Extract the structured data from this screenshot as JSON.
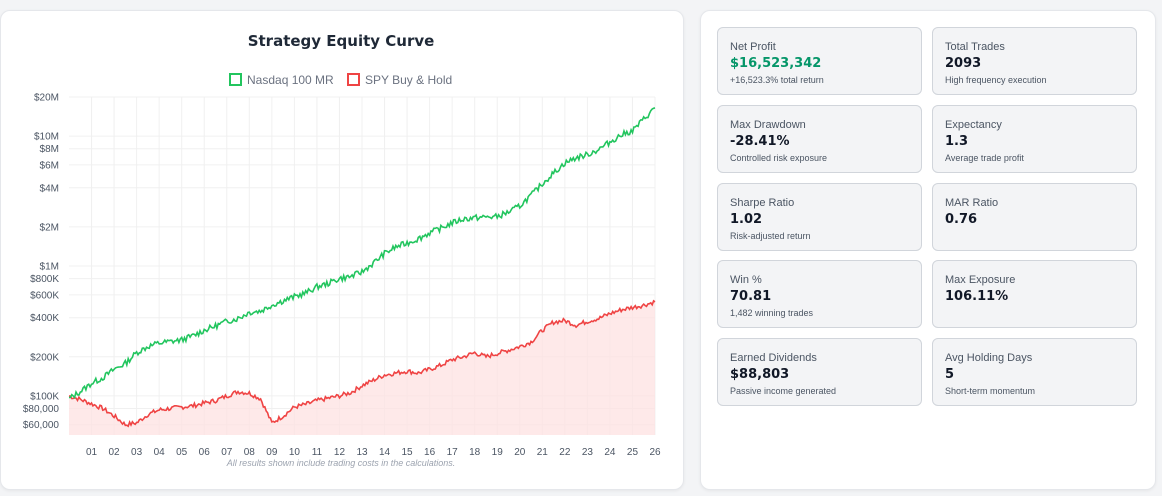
{
  "chart": {
    "footnote": "All results shown include trading costs in the calculations."
  },
  "chart_data": {
    "type": "line",
    "title": "Strategy Equity Curve",
    "legend": "top-center",
    "y_scale": "log",
    "ylim": [
      50000,
      20000000
    ],
    "xlim": [
      2000,
      2026
    ],
    "grid": true,
    "y_ticks": [
      {
        "value": 20000000,
        "label": "$20M"
      },
      {
        "value": 10000000,
        "label": "$10M"
      },
      {
        "value": 8000000,
        "label": "$8M"
      },
      {
        "value": 6000000,
        "label": "$6M"
      },
      {
        "value": 4000000,
        "label": "$4M"
      },
      {
        "value": 2000000,
        "label": "$2M"
      },
      {
        "value": 1000000,
        "label": "$1M"
      },
      {
        "value": 800000,
        "label": "$800K"
      },
      {
        "value": 600000,
        "label": "$600K"
      },
      {
        "value": 400000,
        "label": "$400K"
      },
      {
        "value": 200000,
        "label": "$200K"
      },
      {
        "value": 100000,
        "label": "$100K"
      },
      {
        "value": 80000,
        "label": "$80,000"
      },
      {
        "value": 60000,
        "label": "$60,000"
      }
    ],
    "x_ticks": [
      "01",
      "02",
      "03",
      "04",
      "05",
      "06",
      "07",
      "08",
      "09",
      "10",
      "11",
      "12",
      "13",
      "14",
      "15",
      "16",
      "17",
      "18",
      "19",
      "20",
      "21",
      "22",
      "23",
      "24",
      "25",
      "26"
    ],
    "series": [
      {
        "name": "Nasdaq 100 MR",
        "color": "#22c55e",
        "x": [
          2000,
          2000.5,
          2001,
          2001.5,
          2002,
          2002.5,
          2003,
          2003.5,
          2004,
          2004.5,
          2005,
          2005.5,
          2006,
          2006.5,
          2007,
          2007.5,
          2008,
          2008.5,
          2009,
          2009.5,
          2010,
          2010.5,
          2011,
          2011.5,
          2012,
          2012.5,
          2013,
          2013.5,
          2014,
          2014.5,
          2015,
          2015.5,
          2016,
          2016.5,
          2017,
          2017.5,
          2018,
          2018.5,
          2019,
          2019.5,
          2020,
          2020.5,
          2021,
          2021.5,
          2022,
          2022.5,
          2023,
          2023.5,
          2024,
          2024.5,
          2025,
          2025.5,
          2026
        ],
        "values": [
          95000,
          108000,
          125000,
          138000,
          160000,
          178000,
          215000,
          240000,
          255000,
          262000,
          270000,
          290000,
          320000,
          345000,
          375000,
          395000,
          440000,
          450000,
          500000,
          540000,
          580000,
          620000,
          690000,
          735000,
          800000,
          830000,
          900000,
          1050000,
          1250000,
          1400000,
          1500000,
          1620000,
          1800000,
          1950000,
          2150000,
          2300000,
          2350000,
          2380000,
          2400000,
          2600000,
          2900000,
          3500000,
          4300000,
          5200000,
          6200000,
          6800000,
          7200000,
          7900000,
          9000000,
          10200000,
          11000000,
          13500000,
          16500000
        ]
      },
      {
        "name": "SPY Buy & Hold",
        "color": "#ef4444",
        "x": [
          2000,
          2000.5,
          2001,
          2001.5,
          2002,
          2002.5,
          2003,
          2003.5,
          2004,
          2004.5,
          2005,
          2005.5,
          2006,
          2006.5,
          2007,
          2007.5,
          2008,
          2008.5,
          2009,
          2009.5,
          2010,
          2010.5,
          2011,
          2011.5,
          2012,
          2012.5,
          2013,
          2013.5,
          2014,
          2014.5,
          2015,
          2015.5,
          2016,
          2016.5,
          2017,
          2017.5,
          2018,
          2018.5,
          2019,
          2019.5,
          2020,
          2020.5,
          2021,
          2021.5,
          2022,
          2022.5,
          2023,
          2023.5,
          2024,
          2024.5,
          2025,
          2025.5,
          2026
        ],
        "values": [
          100000,
          94000,
          87000,
          80000,
          70000,
          60000,
          62000,
          72000,
          78000,
          80000,
          82000,
          84000,
          88000,
          92000,
          100000,
          108000,
          105000,
          95000,
          62000,
          70000,
          82000,
          86000,
          92000,
          96000,
          100000,
          106000,
          120000,
          132000,
          145000,
          150000,
          155000,
          150000,
          160000,
          172000,
          190000,
          200000,
          215000,
          200000,
          212000,
          225000,
          240000,
          260000,
          320000,
          370000,
          380000,
          350000,
          375000,
          395000,
          430000,
          460000,
          480000,
          500000,
          530000
        ]
      }
    ]
  },
  "metrics": [
    {
      "label": "Net Profit",
      "value": "$16,523,342",
      "sub": "+16,523.3% total return",
      "positive": true
    },
    {
      "label": "Total Trades",
      "value": "2093",
      "sub": "High frequency execution",
      "positive": false
    },
    {
      "label": "Max Drawdown",
      "value": "-28.41%",
      "sub": "Controlled risk exposure",
      "positive": false
    },
    {
      "label": "Expectancy",
      "value": "1.3",
      "sub": "Average trade profit",
      "positive": false
    },
    {
      "label": "Sharpe Ratio",
      "value": "1.02",
      "sub": "Risk-adjusted return",
      "positive": false
    },
    {
      "label": "MAR Ratio",
      "value": "0.76",
      "sub": "",
      "positive": false
    },
    {
      "label": "Win %",
      "value": "70.81",
      "sub": "1,482 winning trades",
      "positive": false
    },
    {
      "label": "Max Exposure",
      "value": "106.11%",
      "sub": "",
      "positive": false
    },
    {
      "label": "Earned Dividends",
      "value": "$88,803",
      "sub": "Passive income generated",
      "positive": false
    },
    {
      "label": "Avg Holding Days",
      "value": "5",
      "sub": "Short-term momentum",
      "positive": false
    }
  ]
}
